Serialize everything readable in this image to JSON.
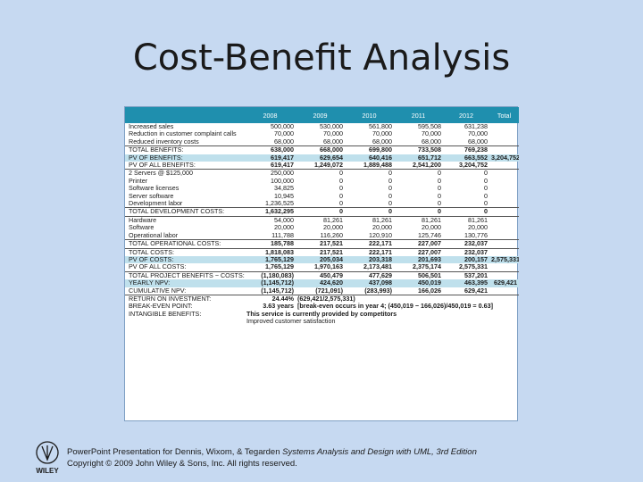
{
  "slide": {
    "title": "Cost-Benefit Analysis",
    "footer_line1_pre": "PowerPoint Presentation for Dennis, Wixom, & Tegarden ",
    "footer_line1_italic": "Systems Analysis and Design with UML, 3rd Edition",
    "footer_line2": "Copyright © 2009 John Wiley & Sons, Inc. All rights reserved.",
    "logo_text": "WILEY"
  },
  "table": {
    "headers": [
      "",
      "2008",
      "2009",
      "2010",
      "2011",
      "2012",
      "Total"
    ],
    "rows": [
      {
        "label": "Increased sales",
        "cells": [
          "500,000",
          "530,000",
          "561,800",
          "595,508",
          "631,238",
          ""
        ],
        "style": ""
      },
      {
        "label": "Reduction in customer complaint calls",
        "cells": [
          "70,000",
          "70,000",
          "70,000",
          "70,000",
          "70,000",
          ""
        ],
        "style": ""
      },
      {
        "label": "Reduced inventory costs",
        "cells": [
          "68,000",
          "68,000",
          "68,000",
          "68,000",
          "68,000",
          ""
        ],
        "style": ""
      },
      {
        "label": "TOTAL BENEFITS:",
        "cells": [
          "638,000",
          "668,000",
          "699,800",
          "733,508",
          "769,238",
          ""
        ],
        "style": "sep"
      },
      {
        "label": "PV OF BENEFITS:",
        "cells": [
          "619,417",
          "629,654",
          "640,416",
          "651,712",
          "663,552",
          "3,204,752"
        ],
        "style": "blue"
      },
      {
        "label": "PV OF ALL BENEFITS:",
        "cells": [
          "619,417",
          "1,249,072",
          "1,889,488",
          "2,541,200",
          "3,204,752",
          ""
        ],
        "style": ""
      },
      {
        "label": "2 Servers @ $125,000",
        "cells": [
          "250,000",
          "0",
          "0",
          "0",
          "0",
          ""
        ],
        "style": "sep"
      },
      {
        "label": "Printer",
        "cells": [
          "100,000",
          "0",
          "0",
          "0",
          "0",
          ""
        ],
        "style": ""
      },
      {
        "label": "Software licenses",
        "cells": [
          "34,825",
          "0",
          "0",
          "0",
          "0",
          ""
        ],
        "style": ""
      },
      {
        "label": "Server software",
        "cells": [
          "10,945",
          "0",
          "0",
          "0",
          "0",
          ""
        ],
        "style": ""
      },
      {
        "label": "Development labor",
        "cells": [
          "1,236,525",
          "0",
          "0",
          "0",
          "0",
          ""
        ],
        "style": ""
      },
      {
        "label": "TOTAL DEVELOPMENT COSTS:",
        "cells": [
          "1,632,295",
          "0",
          "0",
          "0",
          "0",
          ""
        ],
        "style": "sep"
      },
      {
        "label": "Hardware",
        "cells": [
          "54,000",
          "81,261",
          "81,261",
          "81,261",
          "81,261",
          ""
        ],
        "style": "sep"
      },
      {
        "label": "Software",
        "cells": [
          "20,000",
          "20,000",
          "20,000",
          "20,000",
          "20,000",
          ""
        ],
        "style": ""
      },
      {
        "label": "Operational labor",
        "cells": [
          "111,788",
          "116,260",
          "120,910",
          "125,746",
          "130,776",
          ""
        ],
        "style": ""
      },
      {
        "label": "TOTAL OPERATIONAL COSTS:",
        "cells": [
          "185,788",
          "217,521",
          "222,171",
          "227,007",
          "232,037",
          ""
        ],
        "style": "sep"
      },
      {
        "label": "TOTAL COSTS:",
        "cells": [
          "1,818,083",
          "217,521",
          "222,171",
          "227,007",
          "232,037",
          ""
        ],
        "style": "sep"
      },
      {
        "label": "PV OF COSTS:",
        "cells": [
          "1,765,129",
          "205,034",
          "203,318",
          "201,693",
          "200,157",
          "2,575,331"
        ],
        "style": "blue"
      },
      {
        "label": "PV OF ALL COSTS:",
        "cells": [
          "1,765,129",
          "1,970,163",
          "2,173,481",
          "2,375,174",
          "2,575,331",
          ""
        ],
        "style": ""
      },
      {
        "label": "TOTAL PROJECT BENEFITS − COSTS:",
        "cells": [
          "(1,180,083)",
          "450,479",
          "477,629",
          "506,501",
          "537,201",
          ""
        ],
        "style": "sep"
      },
      {
        "label": "YEARLY NPV:",
        "cells": [
          "(1,145,712)",
          "424,620",
          "437,098",
          "450,019",
          "463,395",
          "629,421"
        ],
        "style": "blue"
      },
      {
        "label": "CUMULATIVE NPV:",
        "cells": [
          "(1,145,712)",
          "(721,091)",
          "(283,993)",
          "166,026",
          "629,421",
          ""
        ],
        "style": ""
      },
      {
        "label": "RETURN ON INVESTMENT:",
        "cells": [
          "24.44%",
          "(629,421/2,575,331)",
          "",
          "",
          "",
          ""
        ],
        "style": "sep"
      },
      {
        "label": "BREAK-EVEN POINT:",
        "cells": [
          "3.63 years",
          "[break-even occurs in year 4; (450,019 − 166,026)/450,019 = 0.63]",
          "",
          "",
          "",
          ""
        ],
        "style": ""
      },
      {
        "label": "INTANGIBLE BENEFITS:",
        "cells": [
          "This service is currently provided by competitors",
          "",
          "",
          "",
          "",
          ""
        ],
        "style": ""
      },
      {
        "label": "",
        "cells": [
          "Improved customer satisfaction",
          "",
          "",
          "",
          "",
          ""
        ],
        "style": ""
      }
    ]
  }
}
